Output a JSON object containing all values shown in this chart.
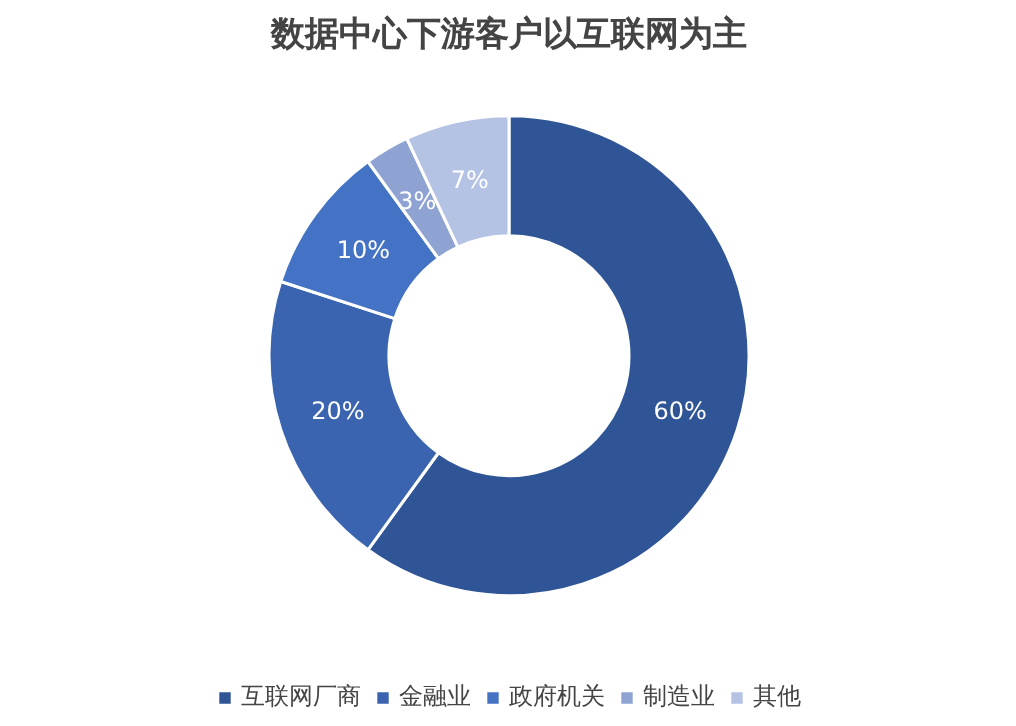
{
  "chart_data": {
    "type": "donut",
    "title": "数据中心下游客户以互联网为主",
    "categories": [
      "互联网厂商",
      "金融业",
      "政府机关",
      "制造业",
      "其他"
    ],
    "values": [
      60,
      20,
      10,
      3,
      7
    ],
    "colors": [
      "#2f5597",
      "#3a64b0",
      "#4472c4",
      "#8fa3d3",
      "#b4c2e4"
    ],
    "value_labels": [
      "60%",
      "20%",
      "10%",
      "3%",
      "7%"
    ],
    "legend": "bottom"
  }
}
